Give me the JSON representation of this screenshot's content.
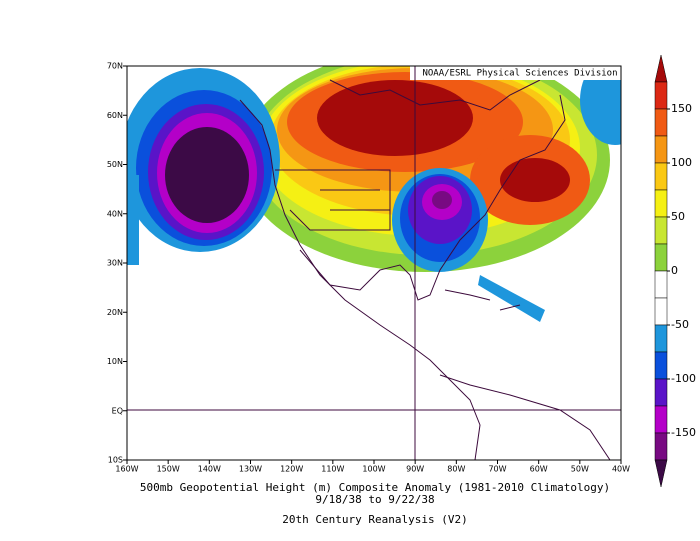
{
  "map": {
    "credit": "NOAA/ESRL Physical Sciences Division",
    "title": "500mb Geopotential Height (m) Composite Anomaly (1981-2010 Climatology)",
    "dates": "9/18/38  to 9/22/38",
    "source": "20th Century Reanalysis (V2)",
    "lon_labels": [
      "160W",
      "150W",
      "140W",
      "130W",
      "120W",
      "110W",
      "100W",
      "90W",
      "80W",
      "70W",
      "60W",
      "50W",
      "40W"
    ],
    "lat_labels": [
      "10S",
      "EQ",
      "10N",
      "20N",
      "30N",
      "40N",
      "50N",
      "60N",
      "70N"
    ],
    "colorbar": {
      "labels": [
        150,
        100,
        50,
        0,
        -50,
        -100,
        -150
      ],
      "colors": [
        "#a50a0a",
        "#dc2814",
        "#f05a14",
        "#f59614",
        "#fac814",
        "#f5f014",
        "#c8e632",
        "#8cd23c",
        "#ffffff",
        "#ffffff",
        "#1e96dc",
        "#0a50dc",
        "#5a14c8",
        "#b400c8",
        "#780a82",
        "#3c0a46"
      ]
    }
  }
}
